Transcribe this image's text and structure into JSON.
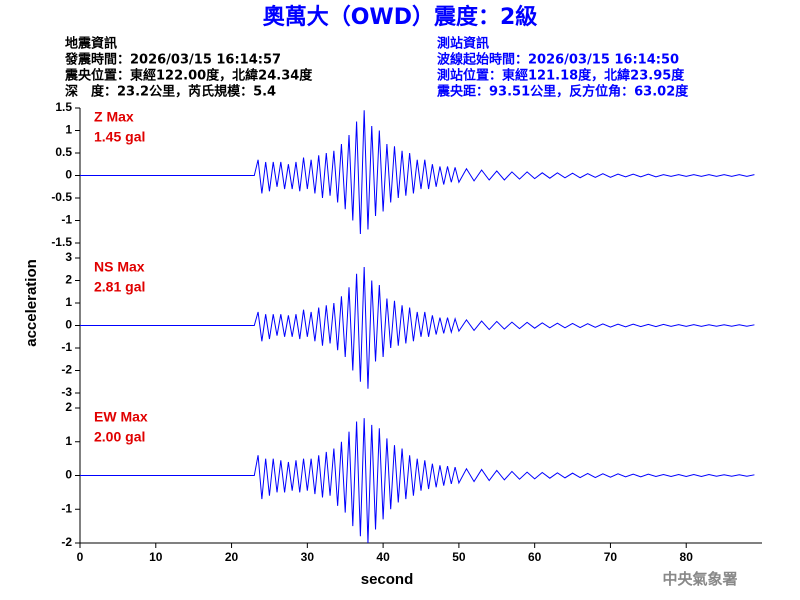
{
  "title": "奧萬大（OWD）震度：2級",
  "event_info": [
    "地震資訊",
    "發震時間：2026/03/15 16:14:57",
    "震央位置：東經122.00度，北緯24.34度",
    "深　度：23.2公里，芮氏規模：5.4"
  ],
  "station_info": [
    "測站資訊",
    "波線起始時間：2026/03/15 16:14:50",
    "測站位置：東經121.18度，北緯23.95度",
    "震央距：93.51公里，反方位角：63.02度"
  ],
  "y_label": "acceleration",
  "footer": "中央氣象署",
  "chart_data": [
    {
      "type": "line",
      "annotation": [
        "Z Max",
        "1.45 gal"
      ],
      "color": "#0000ff",
      "xlim": [
        0,
        90
      ],
      "ylim": [
        -1.5,
        1.5
      ],
      "yticks": [
        -1.5,
        -1,
        -0.5,
        0,
        0.5,
        1,
        1.5
      ],
      "x": [
        0,
        5,
        10,
        15,
        20,
        23,
        23.5,
        24,
        24.5,
        25,
        25.5,
        26,
        26.5,
        27,
        27.5,
        28,
        28.5,
        29,
        29.5,
        30,
        30.5,
        31,
        31.5,
        32,
        32.5,
        33,
        33.5,
        34,
        34.5,
        35,
        35.5,
        36,
        36.5,
        37,
        37.5,
        38,
        38.5,
        39,
        39.5,
        40,
        40.5,
        41,
        41.5,
        42,
        42.5,
        43,
        43.5,
        44,
        44.5,
        45,
        45.5,
        46,
        46.5,
        47,
        47.5,
        48,
        48.5,
        49,
        49.5,
        50,
        51,
        52,
        53,
        54,
        55,
        56,
        57,
        58,
        59,
        60,
        61,
        62,
        63,
        64,
        65,
        66,
        67,
        68,
        69,
        70,
        71,
        72,
        73,
        74,
        75,
        76,
        77,
        78,
        79,
        80,
        81,
        82,
        83,
        84,
        85,
        86,
        87,
        88,
        89
      ],
      "values": [
        0,
        0,
        0,
        0,
        0,
        0,
        0.35,
        -0.4,
        0.3,
        -0.35,
        0.3,
        -0.25,
        0.3,
        -0.3,
        0.25,
        -0.3,
        0.3,
        -0.35,
        0.4,
        -0.3,
        0.35,
        -0.4,
        0.45,
        -0.5,
        0.5,
        -0.45,
        0.55,
        -0.6,
        0.7,
        -0.75,
        0.9,
        -1.0,
        1.2,
        -1.3,
        1.45,
        -1.2,
        1.1,
        -0.9,
        1.0,
        -0.8,
        0.7,
        -0.6,
        0.65,
        -0.5,
        0.55,
        -0.45,
        0.5,
        -0.4,
        0.35,
        -0.3,
        0.35,
        -0.3,
        0.25,
        -0.25,
        0.2,
        -0.2,
        0.2,
        -0.15,
        0.18,
        -0.15,
        0.15,
        -0.12,
        0.12,
        -0.1,
        0.1,
        -0.1,
        0.08,
        -0.08,
        0.08,
        -0.07,
        0.06,
        -0.06,
        0.06,
        -0.05,
        0.05,
        -0.05,
        0.04,
        -0.04,
        0.04,
        -0.04,
        0.03,
        -0.03,
        0.03,
        -0.03,
        0.03,
        -0.03,
        0.02,
        -0.02,
        0.02,
        -0.02,
        0.02,
        -0.02,
        0.02,
        -0.02,
        0.02,
        -0.02,
        0.02,
        -0.02,
        0.02
      ]
    },
    {
      "type": "line",
      "annotation": [
        "NS Max",
        "2.81 gal"
      ],
      "color": "#0000ff",
      "xlim": [
        0,
        90
      ],
      "ylim": [
        -3,
        3
      ],
      "yticks": [
        -3,
        -2,
        -1,
        0,
        1,
        2,
        3
      ],
      "x": [
        0,
        5,
        10,
        15,
        20,
        23,
        23.5,
        24,
        24.5,
        25,
        25.5,
        26,
        26.5,
        27,
        27.5,
        28,
        28.5,
        29,
        29.5,
        30,
        30.5,
        31,
        31.5,
        32,
        32.5,
        33,
        33.5,
        34,
        34.5,
        35,
        35.5,
        36,
        36.5,
        37,
        37.5,
        38,
        38.5,
        39,
        39.5,
        40,
        40.5,
        41,
        41.5,
        42,
        42.5,
        43,
        43.5,
        44,
        44.5,
        45,
        45.5,
        46,
        46.5,
        47,
        47.5,
        48,
        48.5,
        49,
        49.5,
        50,
        51,
        52,
        53,
        54,
        55,
        56,
        57,
        58,
        59,
        60,
        61,
        62,
        63,
        64,
        65,
        66,
        67,
        68,
        69,
        70,
        71,
        72,
        73,
        74,
        75,
        76,
        77,
        78,
        79,
        80,
        81,
        82,
        83,
        84,
        85,
        86,
        87,
        88,
        89
      ],
      "values": [
        0,
        0,
        0,
        0,
        0,
        0,
        0.6,
        -0.7,
        0.5,
        -0.6,
        0.5,
        -0.45,
        0.5,
        -0.5,
        0.45,
        -0.5,
        0.5,
        -0.6,
        0.7,
        -0.5,
        0.6,
        -0.7,
        0.8,
        -0.9,
        0.9,
        -0.8,
        1.0,
        -1.1,
        1.3,
        -1.4,
        1.7,
        -2.0,
        2.3,
        -2.5,
        2.6,
        -2.81,
        2.0,
        -1.6,
        1.8,
        -1.4,
        1.2,
        -1.0,
        1.1,
        -0.9,
        0.9,
        -0.8,
        0.8,
        -0.7,
        0.6,
        -0.5,
        0.6,
        -0.5,
        0.45,
        -0.4,
        0.35,
        -0.35,
        0.35,
        -0.3,
        0.3,
        -0.25,
        0.25,
        -0.22,
        0.2,
        -0.18,
        0.18,
        -0.16,
        0.15,
        -0.14,
        0.14,
        -0.12,
        0.12,
        -0.1,
        0.1,
        -0.1,
        0.09,
        -0.09,
        0.08,
        -0.08,
        0.07,
        -0.07,
        0.06,
        -0.06,
        0.06,
        -0.05,
        0.05,
        -0.05,
        0.05,
        -0.04,
        0.04,
        -0.04,
        0.04,
        -0.04,
        0.03,
        -0.03,
        0.03,
        -0.03,
        0.03,
        -0.03,
        0.03
      ]
    },
    {
      "type": "line",
      "annotation": [
        "EW Max",
        "2.00 gal"
      ],
      "color": "#0000ff",
      "xlim": [
        0,
        90
      ],
      "ylim": [
        -2,
        2
      ],
      "yticks": [
        -2,
        -1,
        0,
        1,
        2
      ],
      "xticks": [
        0,
        10,
        20,
        30,
        40,
        50,
        60,
        70,
        80
      ],
      "x_label": "second",
      "x": [
        0,
        5,
        10,
        15,
        20,
        23,
        23.5,
        24,
        24.5,
        25,
        25.5,
        26,
        26.5,
        27,
        27.5,
        28,
        28.5,
        29,
        29.5,
        30,
        30.5,
        31,
        31.5,
        32,
        32.5,
        33,
        33.5,
        34,
        34.5,
        35,
        35.5,
        36,
        36.5,
        37,
        37.5,
        38,
        38.5,
        39,
        39.5,
        40,
        40.5,
        41,
        41.5,
        42,
        42.5,
        43,
        43.5,
        44,
        44.5,
        45,
        45.5,
        46,
        46.5,
        47,
        47.5,
        48,
        48.5,
        49,
        49.5,
        50,
        51,
        52,
        53,
        54,
        55,
        56,
        57,
        58,
        59,
        60,
        61,
        62,
        63,
        64,
        65,
        66,
        67,
        68,
        69,
        70,
        71,
        72,
        73,
        74,
        75,
        76,
        77,
        78,
        79,
        80,
        81,
        82,
        83,
        84,
        85,
        86,
        87,
        88,
        89
      ],
      "values": [
        0,
        0,
        0,
        0,
        0,
        0,
        0.6,
        -0.7,
        0.5,
        -0.6,
        0.5,
        -0.5,
        0.45,
        -0.5,
        0.4,
        -0.45,
        0.45,
        -0.5,
        0.5,
        -0.45,
        0.5,
        -0.55,
        0.6,
        -0.65,
        0.7,
        -0.6,
        0.8,
        -0.9,
        1.0,
        -1.1,
        1.3,
        -1.5,
        1.6,
        -1.8,
        1.7,
        -2.0,
        1.5,
        -1.6,
        1.4,
        -1.3,
        1.1,
        -1.0,
        0.9,
        -0.8,
        0.8,
        -0.7,
        0.6,
        -0.6,
        0.5,
        -0.45,
        0.45,
        -0.4,
        0.35,
        -0.35,
        0.3,
        -0.3,
        0.28,
        -0.25,
        0.25,
        -0.22,
        0.2,
        -0.18,
        0.18,
        -0.15,
        0.15,
        -0.13,
        0.12,
        -0.11,
        0.1,
        -0.1,
        0.09,
        -0.08,
        0.08,
        -0.07,
        0.07,
        -0.06,
        0.06,
        -0.06,
        0.05,
        -0.05,
        0.05,
        -0.04,
        0.04,
        -0.04,
        0.04,
        -0.03,
        0.03,
        -0.03,
        0.03,
        -0.03,
        0.03,
        -0.03,
        0.03,
        -0.02,
        0.02,
        -0.02,
        0.02,
        -0.02,
        0.02
      ]
    }
  ]
}
